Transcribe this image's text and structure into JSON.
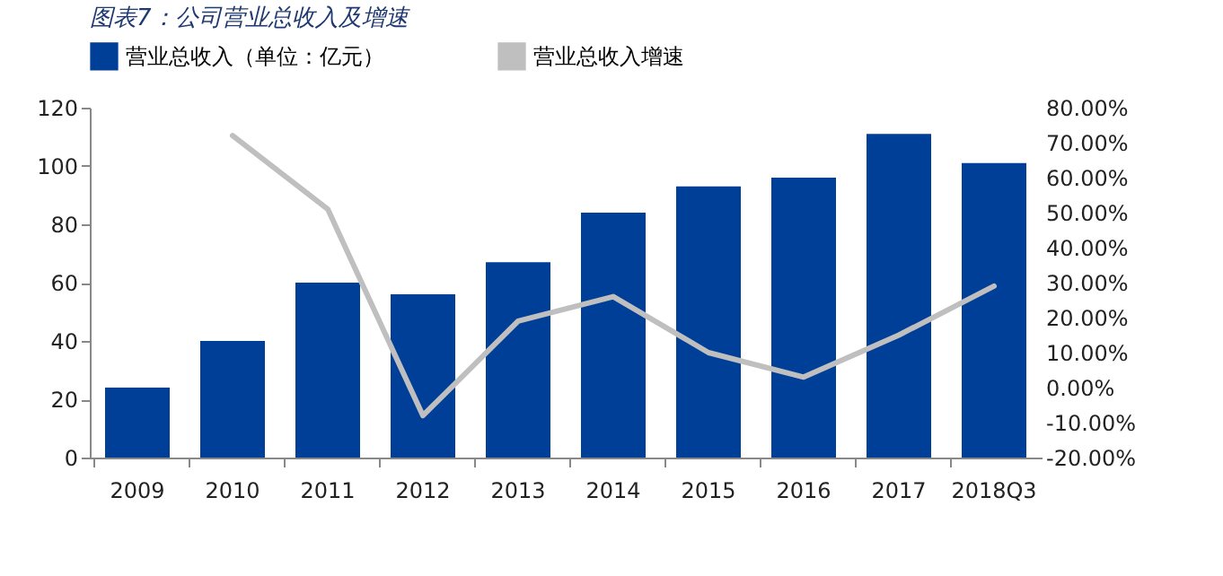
{
  "chart_data": {
    "type": "bar",
    "title": "图表7：公司营业总收入及增速",
    "categories": [
      "2009",
      "2010",
      "2011",
      "2012",
      "2013",
      "2014",
      "2015",
      "2016",
      "2017",
      "2018Q3"
    ],
    "series": [
      {
        "name": "营业总收入（单位：亿元）",
        "color": "#003f98",
        "values": [
          24,
          40,
          60,
          56,
          67,
          84,
          93,
          96,
          111,
          101
        ]
      },
      {
        "name": "营业总收入增速",
        "type": "line",
        "axis": "y2",
        "color": "#bfbfbf",
        "values": [
          null,
          72,
          51,
          -8,
          19,
          26,
          10,
          3,
          15,
          29
        ]
      }
    ],
    "ylim": [
      0,
      120
    ],
    "yticks": [
      0,
      20,
      40,
      60,
      80,
      100,
      120
    ],
    "y2lim": [
      -20,
      80
    ],
    "y2ticks": [
      {
        "value": -20,
        "label": "-20.00%"
      },
      {
        "value": -10,
        "label": "-10.00%"
      },
      {
        "value": 0,
        "label": "0.00%"
      },
      {
        "value": 10,
        "label": "10.00%"
      },
      {
        "value": 20,
        "label": "20.00%"
      },
      {
        "value": 30,
        "label": "30.00%"
      },
      {
        "value": 40,
        "label": "40.00%"
      },
      {
        "value": 50,
        "label": "50.00%"
      },
      {
        "value": 60,
        "label": "60.00%"
      },
      {
        "value": 70,
        "label": "70.00%"
      },
      {
        "value": 80,
        "label": "80.00%"
      }
    ],
    "grid": false,
    "legend": "top"
  }
}
